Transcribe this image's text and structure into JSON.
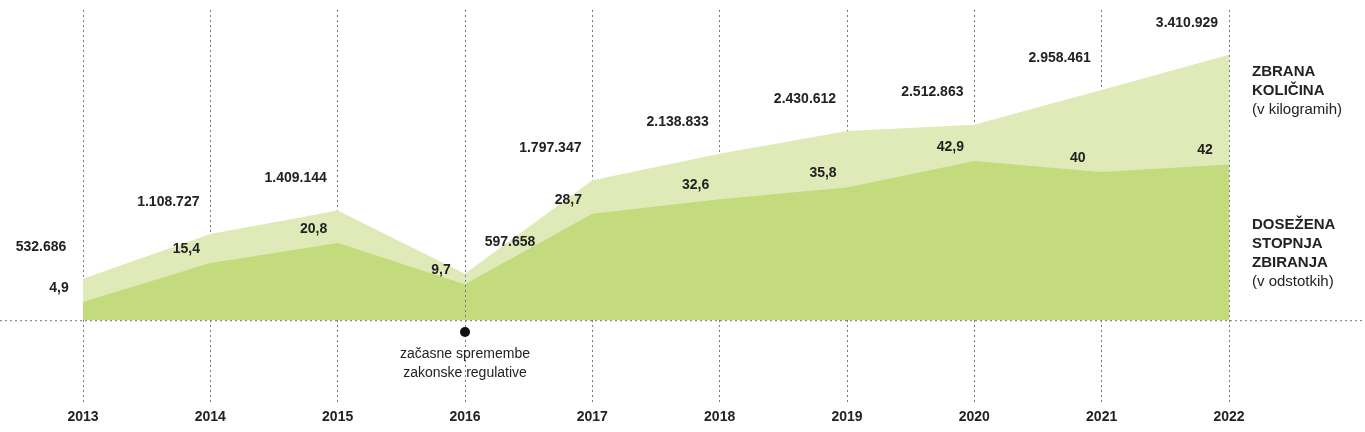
{
  "chart_data": {
    "type": "area",
    "categories": [
      "2013",
      "2014",
      "2015",
      "2016",
      "2017",
      "2018",
      "2019",
      "2020",
      "2021",
      "2022"
    ],
    "series": [
      {
        "name": "ZBRANA KOLIČINA (v kilogramih)",
        "color": "#dfeab8",
        "values": [
          532686,
          1108727,
          1409144,
          597658,
          1797347,
          2138833,
          2430612,
          2512863,
          2958461,
          3410929
        ],
        "value_labels": [
          "532.686",
          "1.108.727",
          "1.409.144",
          "597.658",
          "1.797.347",
          "2.138.833",
          "2.430.612",
          "2.512.863",
          "2.958.461",
          "3.410.929"
        ]
      },
      {
        "name": "DOSEŽENA STOPNJA ZBIRANJA (v odstotkih)",
        "color": "#c3da7d",
        "axis": "y2",
        "values": [
          4.9,
          15.4,
          20.8,
          9.7,
          28.7,
          32.6,
          35.8,
          42.9,
          40,
          42
        ],
        "value_labels": [
          "4,9",
          "15,4",
          "20,8",
          "9,7",
          "28,7",
          "32,6",
          "35,8",
          "42,9",
          "40",
          "42"
        ]
      }
    ],
    "tick_labels": "x",
    "grid": "x",
    "ref_lines": [
      {
        "axis": "x",
        "value": "2016",
        "label": "začasne spremembe zakonske regulative",
        "line_style": "dotted"
      }
    ]
  }
}
